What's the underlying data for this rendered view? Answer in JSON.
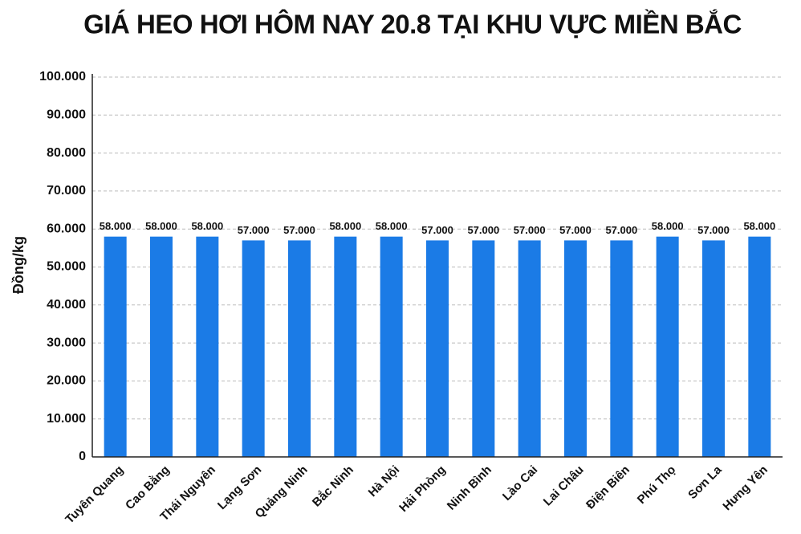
{
  "chart_data": {
    "type": "bar",
    "title": "GIÁ HEO HƠI HÔM NAY 20.8 TẠI KHU VỰC MIỀN BẮC",
    "y_label": "Đồng/kg",
    "categories": [
      "Tuyên Quang",
      "Cao Bằng",
      "Thái Nguyên",
      "Lạng Sơn",
      "Quảng Ninh",
      "Bắc Ninh",
      "Hà Nội",
      "Hải Phòng",
      "Ninh Bình",
      "Lào Cai",
      "Lai Châu",
      "Điện Biên",
      "Phú Thọ",
      "Sơn La",
      "Hưng Yên"
    ],
    "values": [
      58000,
      58000,
      58000,
      57000,
      57000,
      58000,
      58000,
      57000,
      57000,
      57000,
      57000,
      57000,
      58000,
      57000,
      58000
    ],
    "value_labels": [
      "58.000",
      "58.000",
      "58.000",
      "57.000",
      "57.000",
      "58.000",
      "58.000",
      "57.000",
      "57.000",
      "57.000",
      "57.000",
      "57.000",
      "58.000",
      "57.000",
      "58.000"
    ],
    "color": "#1b7be6",
    "ylim": [
      0,
      100000
    ],
    "yticks": [
      0,
      {
        "value": 10000,
        "label": "10.000"
      },
      {
        "value": 20000,
        "label": "20.000"
      },
      {
        "value": 30000,
        "label": "30.000"
      },
      {
        "value": 40000,
        "label": "40.000"
      },
      {
        "value": 50000,
        "label": "50.000"
      },
      {
        "value": 60000,
        "label": "60.000"
      },
      {
        "value": 70000,
        "label": "70.000"
      },
      {
        "value": 80000,
        "label": "80.000"
      },
      {
        "value": 90000,
        "label": "90.000"
      },
      {
        "value": 100000,
        "label": "100.000"
      }
    ],
    "grid": true
  }
}
